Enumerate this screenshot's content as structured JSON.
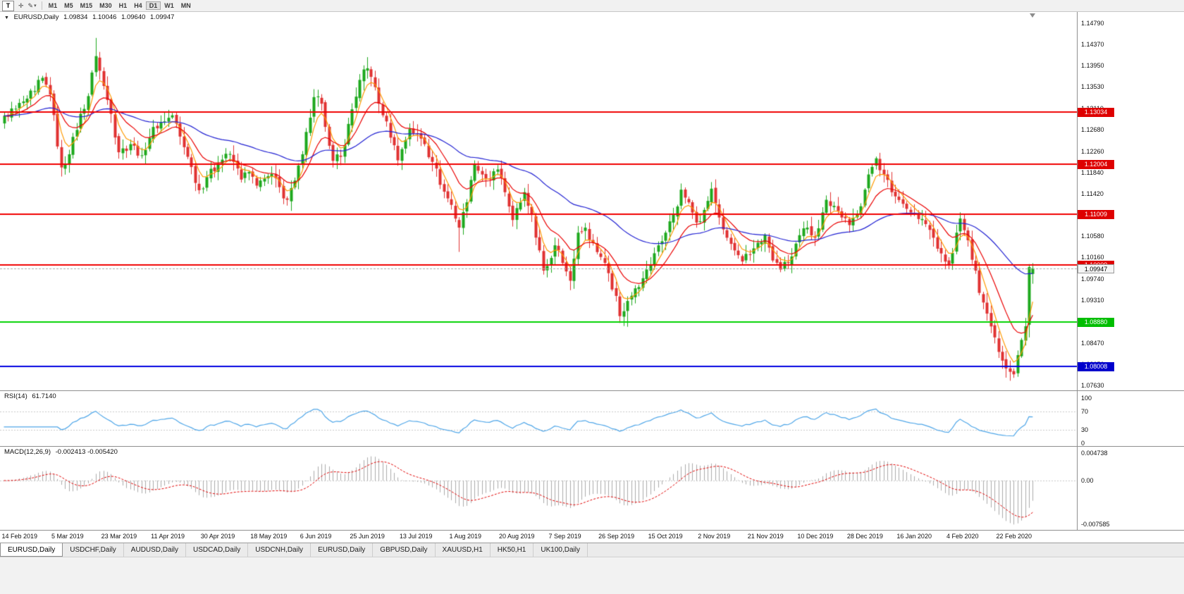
{
  "toolbar": {
    "t_label": "T",
    "cursor_icon": "✛",
    "draw_icon": "✎",
    "caret": "▾",
    "timeframes": [
      "M1",
      "M5",
      "M15",
      "M30",
      "H1",
      "H4",
      "D1",
      "W1",
      "MN"
    ],
    "active_timeframe": "D1"
  },
  "quote": {
    "collapse": "▼",
    "symbol": "EURUSD,Daily",
    "open": "1.09834",
    "high": "1.10046",
    "low": "1.09640",
    "close": "1.09947"
  },
  "price_scale": {
    "labels": [
      "1.14790",
      "1.14370",
      "1.13950",
      "1.13530",
      "1.13110",
      "1.12680",
      "1.12260",
      "1.11840",
      "1.11420",
      "1.11000",
      "1.10580",
      "1.10160",
      "1.09740",
      "1.09310",
      "1.08880",
      "1.08470",
      "1.08050",
      "1.07630"
    ]
  },
  "hlines": [
    {
      "price": 1.13034,
      "label": "1.13034",
      "color": "#F00000",
      "badge": "#DE0000",
      "width": 2
    },
    {
      "price": 1.12004,
      "label": "1.12004",
      "color": "#F00000",
      "badge": "#DE0000",
      "width": 2
    },
    {
      "price": 1.11009,
      "label": "1.11009",
      "color": "#F00000",
      "badge": "#DE0000",
      "width": 2
    },
    {
      "price": 1.10009,
      "label": "1.10009",
      "color": "#F00000",
      "badge": "#DE0000",
      "width": 2
    },
    {
      "price": 1.0888,
      "label": "1.08880",
      "color": "#00D200",
      "badge": "#00BE00",
      "width": 2
    },
    {
      "price": 1.08008,
      "label": "1.08008",
      "color": "#0000E0",
      "badge": "#0000CC",
      "width": 2
    }
  ],
  "current_price": {
    "label": "1.09947",
    "value": 1.09947,
    "line_color": "#a8a8a8"
  },
  "rsi_panel": {
    "title": "RSI(14)",
    "value": "61.7140",
    "line_color": "#4FA6E8",
    "levels": [
      {
        "v": 100,
        "label": "100",
        "dashed": false
      },
      {
        "v": 70,
        "label": "70",
        "dashed": true
      },
      {
        "v": 30,
        "label": "30",
        "dashed": true
      },
      {
        "v": 0,
        "label": "0",
        "dashed": false
      }
    ]
  },
  "macd_panel": {
    "title": "MACD(12,26,9)",
    "value": "-0.002413 -0.005420",
    "histogram_color": "#ababab",
    "signal_color": "#E00000",
    "scale": {
      "max": 0.004738,
      "max_label": "0.004738",
      "zero_label": "0.00",
      "min": -0.007585,
      "min_label": "-0.007585"
    }
  },
  "date_axis": [
    "14 Feb 2019",
    "5 Mar 2019",
    "23 Mar 2019",
    "11 Apr 2019",
    "30 Apr 2019",
    "18 May 2019",
    "6 Jun 2019",
    "25 Jun 2019",
    "13 Jul 2019",
    "1 Aug 2019",
    "20 Aug 2019",
    "7 Sep 2019",
    "26 Sep 2019",
    "15 Oct 2019",
    "2 Nov 2019",
    "21 Nov 2019",
    "10 Dec 2019",
    "28 Dec 2019",
    "16 Jan 2020",
    "4 Feb 2020",
    "22 Feb 2020"
  ],
  "tabs": [
    {
      "label": "EURUSD,Daily",
      "active": true
    },
    {
      "label": "USDCHF,Daily",
      "active": false
    },
    {
      "label": "AUDUSD,Daily",
      "active": false
    },
    {
      "label": "USDCAD,Daily",
      "active": false
    },
    {
      "label": "USDCNH,Daily",
      "active": false
    },
    {
      "label": "EURUSD,Daily",
      "active": false
    },
    {
      "label": "GBPUSD,Daily",
      "active": false
    },
    {
      "label": "XAUUSD,H1",
      "active": false
    },
    {
      "label": "HK50,H1",
      "active": false
    },
    {
      "label": "UK100,Daily",
      "active": false
    }
  ],
  "chart_data": {
    "type": "candlestick",
    "symbol": "EURUSD",
    "timeframe": "Daily",
    "bars": 270,
    "up_color": "#1DA81D",
    "down_color": "#E03131",
    "emas": [
      {
        "period": 5,
        "color": "#FF9900"
      },
      {
        "period": 13,
        "color": "#EA0000"
      },
      {
        "period": 50,
        "color": "#2222D2"
      }
    ],
    "y_range": {
      "top_label_price": 1.1479,
      "bottom_label_price": 1.0763
    },
    "current_bar": {
      "open": 1.09834,
      "high": 1.10046,
      "low": 1.0964,
      "close": 1.09947
    },
    "close_anchors": [
      [
        0,
        1.1296
      ],
      [
        3,
        1.131
      ],
      [
        6,
        1.133
      ],
      [
        8,
        1.1345
      ],
      [
        10,
        1.1371
      ],
      [
        12,
        1.1338
      ],
      [
        15,
        1.1194
      ],
      [
        17,
        1.122
      ],
      [
        20,
        1.13
      ],
      [
        22,
        1.1335
      ],
      [
        24,
        1.1414
      ],
      [
        26,
        1.1355
      ],
      [
        28,
        1.13
      ],
      [
        30,
        1.1224
      ],
      [
        33,
        1.124
      ],
      [
        36,
        1.1218
      ],
      [
        39,
        1.1274
      ],
      [
        42,
        1.1285
      ],
      [
        44,
        1.1297
      ],
      [
        46,
        1.1255
      ],
      [
        48,
        1.1215
      ],
      [
        51,
        1.1149
      ],
      [
        53,
        1.1175
      ],
      [
        56,
        1.12
      ],
      [
        58,
        1.1221
      ],
      [
        60,
        1.1205
      ],
      [
        62,
        1.117
      ],
      [
        64,
        1.1185
      ],
      [
        66,
        1.1158
      ],
      [
        68,
        1.1172
      ],
      [
        70,
        1.1181
      ],
      [
        72,
        1.1155
      ],
      [
        74,
        1.113
      ],
      [
        76,
        1.1168
      ],
      [
        78,
        1.122
      ],
      [
        81,
        1.1333
      ],
      [
        83,
        1.132
      ],
      [
        86,
        1.1207
      ],
      [
        88,
        1.1215
      ],
      [
        90,
        1.128
      ],
      [
        93,
        1.1367
      ],
      [
        95,
        1.139
      ],
      [
        96,
        1.1373
      ],
      [
        98,
        1.132
      ],
      [
        100,
        1.1285
      ],
      [
        103,
        1.1208
      ],
      [
        105,
        1.1248
      ],
      [
        106,
        1.127
      ],
      [
        108,
        1.126
      ],
      [
        110,
        1.124
      ],
      [
        112,
        1.1205
      ],
      [
        115,
        1.1146
      ],
      [
        117,
        1.112
      ],
      [
        119,
        1.1075
      ],
      [
        121,
        1.1125
      ],
      [
        123,
        1.12
      ],
      [
        125,
        1.118
      ],
      [
        127,
        1.117
      ],
      [
        129,
        1.119
      ],
      [
        131,
        1.1145
      ],
      [
        133,
        1.109
      ],
      [
        135,
        1.1125
      ],
      [
        136,
        1.1145
      ],
      [
        138,
        1.11
      ],
      [
        140,
        1.103
      ],
      [
        141,
        1.099
      ],
      [
        143,
        1.1015
      ],
      [
        144,
        1.104
      ],
      [
        146,
        1.1005
      ],
      [
        148,
        1.097
      ],
      [
        150,
        1.1065
      ],
      [
        152,
        1.1075
      ],
      [
        154,
        1.1045
      ],
      [
        156,
        1.1017
      ],
      [
        158,
        1.0985
      ],
      [
        160,
        1.094
      ],
      [
        161,
        1.09
      ],
      [
        163,
        1.093
      ],
      [
        165,
        1.0955
      ],
      [
        167,
        1.0975
      ],
      [
        169,
        1.1
      ],
      [
        171,
        1.104
      ],
      [
        173,
        1.1065
      ],
      [
        175,
        1.11
      ],
      [
        177,
        1.115
      ],
      [
        179,
        1.1125
      ],
      [
        181,
        1.1085
      ],
      [
        183,
        1.111
      ],
      [
        185,
        1.1152
      ],
      [
        187,
        1.1095
      ],
      [
        189,
        1.1055
      ],
      [
        191,
        1.103
      ],
      [
        193,
        1.1008
      ],
      [
        195,
        1.1021
      ],
      [
        197,
        1.1045
      ],
      [
        199,
        1.106
      ],
      [
        201,
        1.101
      ],
      [
        203,
        1.0992
      ],
      [
        205,
        1.1005
      ],
      [
        206,
        1.1018
      ],
      [
        208,
        1.106
      ],
      [
        210,
        1.1075
      ],
      [
        212,
        1.1055
      ],
      [
        214,
        1.1105
      ],
      [
        215,
        1.113
      ],
      [
        217,
        1.1118
      ],
      [
        219,
        1.1095
      ],
      [
        221,
        1.108
      ],
      [
        223,
        1.1102
      ],
      [
        225,
        1.115
      ],
      [
        227,
        1.1195
      ],
      [
        228,
        1.1212
      ],
      [
        230,
        1.118
      ],
      [
        232,
        1.1145
      ],
      [
        235,
        1.1122
      ],
      [
        237,
        1.1105
      ],
      [
        239,
        1.1092
      ],
      [
        241,
        1.1082
      ],
      [
        243,
        1.1055
      ],
      [
        245,
        1.1024
      ],
      [
        247,
        1.1002
      ],
      [
        249,
        1.1065
      ],
      [
        250,
        1.1093
      ],
      [
        252,
        1.105
      ],
      [
        254,
        1.099
      ],
      [
        255,
        1.0946
      ],
      [
        257,
        1.0905
      ],
      [
        259,
        1.0858
      ],
      [
        261,
        1.0812
      ],
      [
        263,
        1.079
      ],
      [
        264,
        1.0785
      ],
      [
        265,
        1.0823
      ],
      [
        266,
        1.0853
      ],
      [
        267,
        1.088
      ],
      [
        268,
        1.0997
      ],
      [
        269,
        1.09947
      ]
    ],
    "bar_overrides": {
      "15": {
        "l": 1.1176
      },
      "24": {
        "h": 1.145
      },
      "95": {
        "h": 1.1412
      },
      "119": {
        "l": 1.1027
      },
      "163": {
        "l": 1.0879
      },
      "264": {
        "l": 1.0778
      },
      "268": {
        "o": 1.0883,
        "h": 1.1003,
        "l": 1.0858,
        "c": 1.0997
      },
      "269": {
        "o": 1.09834,
        "h": 1.10046,
        "l": 1.0964,
        "c": 1.09947
      }
    },
    "indicators": {
      "rsi": {
        "period": 14,
        "current": 61.714
      },
      "macd": {
        "fast": 12,
        "slow": 26,
        "signal": 9,
        "current_main": -0.002413,
        "current_signal": -0.00542
      }
    }
  }
}
